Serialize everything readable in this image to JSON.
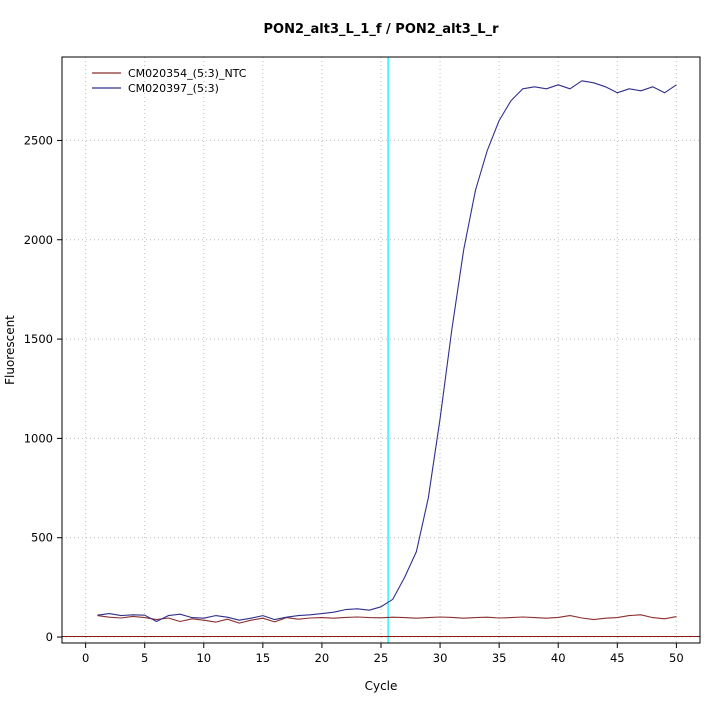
{
  "chart_data": {
    "type": "line",
    "title": "PON2_alt3_L_1_f / PON2_alt3_L_r",
    "xlabel": "Cycle",
    "ylabel": "Fluorescent",
    "xlim": [
      0,
      50
    ],
    "ylim": [
      0,
      2800
    ],
    "xlim_draw": [
      -2,
      52
    ],
    "ylim_draw": [
      -30,
      2920
    ],
    "xticks": [
      0,
      5,
      10,
      15,
      20,
      25,
      30,
      35,
      40,
      45,
      50
    ],
    "yticks": [
      0,
      500,
      1000,
      1500,
      2000,
      2500
    ],
    "grid": "dotted",
    "legend_position": "top-left",
    "colors": {
      "grid": "#bdbdbd",
      "axis": "#000000",
      "background": "#ffffff"
    },
    "threshold_line": {
      "x": 25.6,
      "color": "#00eeee"
    },
    "baseline_line": {
      "y": 3,
      "color": "#8b1a1a"
    },
    "x": [
      1,
      2,
      3,
      4,
      5,
      6,
      7,
      8,
      9,
      10,
      11,
      12,
      13,
      14,
      15,
      16,
      17,
      18,
      19,
      20,
      21,
      22,
      23,
      24,
      25,
      26,
      27,
      28,
      29,
      30,
      31,
      32,
      33,
      34,
      35,
      36,
      37,
      38,
      39,
      40,
      41,
      42,
      43,
      44,
      45,
      46,
      47,
      48,
      49,
      50
    ],
    "series": [
      {
        "name": "CM020354_(5:3)_NTC",
        "color": "#8b2f2f",
        "values": [
          108,
          100,
          96,
          104,
          98,
          88,
          96,
          78,
          92,
          85,
          75,
          90,
          70,
          85,
          95,
          76,
          98,
          90,
          96,
          98,
          95,
          99,
          101,
          98,
          97,
          100,
          98,
          95,
          98,
          101,
          99,
          95,
          98,
          100,
          96,
          98,
          101,
          98,
          95,
          99,
          108,
          96,
          88,
          95,
          98,
          108,
          112,
          98,
          92,
          103
        ]
      },
      {
        "name": "CM020397_(5:3)",
        "color": "#30308c",
        "values": [
          110,
          118,
          108,
          112,
          110,
          78,
          108,
          115,
          98,
          95,
          108,
          100,
          85,
          95,
          108,
          88,
          100,
          108,
          112,
          118,
          125,
          138,
          142,
          135,
          152,
          190,
          300,
          430,
          700,
          1100,
          1550,
          1950,
          2250,
          2450,
          2600,
          2700,
          2760,
          2770,
          2760,
          2780,
          2760,
          2800,
          2790,
          2770,
          2740,
          2760,
          2750,
          2770,
          2740,
          2780
        ]
      }
    ]
  }
}
